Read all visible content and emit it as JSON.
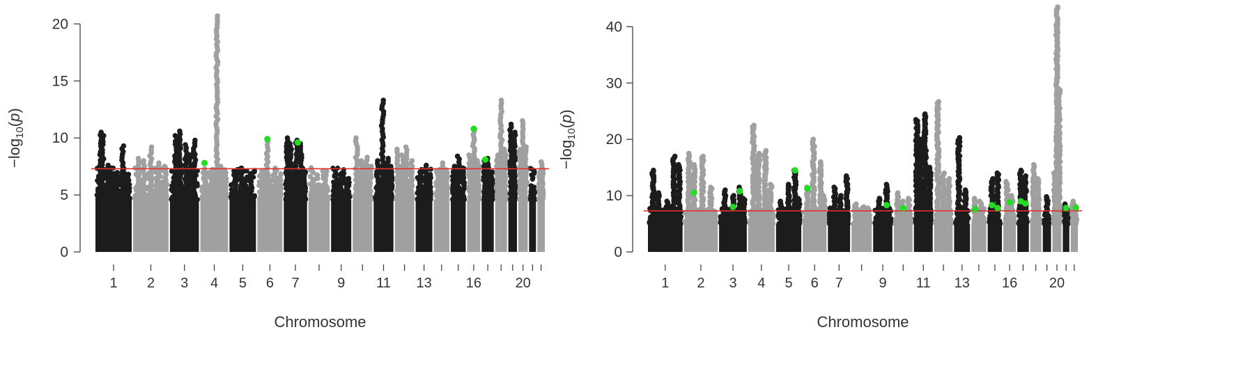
{
  "chart_data": [
    {
      "type": "scatter",
      "title": "",
      "xlabel": "Chromosome",
      "ylabel": {
        "prefix": "−log",
        "sub": "10",
        "open": "(",
        "var": "p",
        "close": ")"
      },
      "ylim": [
        0,
        21
      ],
      "y_ticks": [
        0,
        5,
        10,
        15,
        20
      ],
      "y_tick_labels": [
        "0",
        "5",
        "10",
        "15",
        "20"
      ],
      "threshold": 7.3,
      "threshold_color": "#e03030",
      "colors": {
        "dark": "#1c1c1c",
        "light": "#a0a0a0",
        "highlight": "#22dd22"
      },
      "chromosomes": [
        {
          "chr": "1",
          "label": "1",
          "peaks": [
            [
              0.15,
              10.5
            ],
            [
              0.2,
              10.2
            ],
            [
              0.35,
              7.6
            ],
            [
              0.45,
              6.6
            ],
            [
              0.6,
              6.7
            ],
            [
              0.75,
              9.3
            ],
            [
              0.9,
              6.8
            ]
          ]
        },
        {
          "chr": "2",
          "label": "2",
          "peaks": [
            [
              0.15,
              8.2
            ],
            [
              0.3,
              8.0
            ],
            [
              0.5,
              9.2
            ],
            [
              0.7,
              7.8
            ],
            [
              0.9,
              7.5
            ]
          ]
        },
        {
          "chr": "3",
          "label": "3",
          "peaks": [
            [
              0.2,
              10.2
            ],
            [
              0.35,
              10.6
            ],
            [
              0.55,
              9.4
            ],
            [
              0.7,
              8.5
            ],
            [
              0.85,
              9.8
            ]
          ]
        },
        {
          "chr": "4",
          "label": "4",
          "peaks": [
            [
              0.15,
              7.2
            ],
            [
              0.4,
              7.0
            ],
            [
              0.6,
              20.7
            ],
            [
              0.75,
              7.5
            ],
            [
              0.9,
              7.2
            ]
          ]
        },
        {
          "chr": "5",
          "label": "5",
          "peaks": [
            [
              0.2,
              7.0
            ],
            [
              0.45,
              7.3
            ],
            [
              0.6,
              6.3
            ],
            [
              0.8,
              6.9
            ]
          ]
        },
        {
          "chr": "6",
          "label": "6",
          "peaks": [
            [
              0.2,
              6.5
            ],
            [
              0.4,
              9.9
            ],
            [
              0.7,
              7.2
            ],
            [
              0.9,
              6.8
            ]
          ]
        },
        {
          "chr": "7",
          "label": "7",
          "peaks": [
            [
              0.15,
              10.0
            ],
            [
              0.3,
              9.5
            ],
            [
              0.55,
              9.8
            ],
            [
              0.75,
              9.5
            ],
            [
              0.9,
              7.0
            ]
          ]
        },
        {
          "chr": "8",
          "label": "",
          "peaks": [
            [
              0.2,
              6.2
            ],
            [
              0.5,
              5.6
            ],
            [
              0.8,
              5.8
            ]
          ]
        },
        {
          "chr": "9",
          "label": "9",
          "peaks": [
            [
              0.2,
              6.0
            ],
            [
              0.5,
              6.9
            ],
            [
              0.8,
              6.4
            ]
          ]
        },
        {
          "chr": "10",
          "label": "",
          "peaks": [
            [
              0.2,
              10.0
            ],
            [
              0.45,
              8.0
            ],
            [
              0.7,
              8.3
            ],
            [
              0.9,
              7.5
            ]
          ]
        },
        {
          "chr": "11",
          "label": "11",
          "peaks": [
            [
              0.2,
              8.0
            ],
            [
              0.45,
              13.3
            ],
            [
              0.7,
              8.2
            ],
            [
              0.9,
              7.5
            ]
          ]
        },
        {
          "chr": "12",
          "label": "",
          "peaks": [
            [
              0.15,
              9.0
            ],
            [
              0.4,
              8.5
            ],
            [
              0.6,
              9.2
            ],
            [
              0.85,
              8.0
            ]
          ]
        },
        {
          "chr": "13",
          "label": "13",
          "peaks": [
            [
              0.25,
              7.0
            ],
            [
              0.6,
              7.6
            ],
            [
              0.85,
              6.5
            ]
          ]
        },
        {
          "chr": "14",
          "label": "",
          "peaks": [
            [
              0.25,
              7.0
            ],
            [
              0.55,
              7.8
            ],
            [
              0.85,
              7.2
            ]
          ]
        },
        {
          "chr": "15",
          "label": "",
          "peaks": [
            [
              0.2,
              7.5
            ],
            [
              0.5,
              8.4
            ],
            [
              0.85,
              7.0
            ]
          ]
        },
        {
          "chr": "16",
          "label": "16",
          "peaks": [
            [
              0.2,
              8.5
            ],
            [
              0.5,
              10.8
            ],
            [
              0.85,
              8.0
            ]
          ]
        },
        {
          "chr": "17",
          "label": "",
          "peaks": [
            [
              0.2,
              8.0
            ],
            [
              0.5,
              8.2
            ],
            [
              0.85,
              7.0
            ]
          ]
        },
        {
          "chr": "18",
          "label": "",
          "peaks": [
            [
              0.2,
              8.5
            ],
            [
              0.5,
              13.3
            ],
            [
              0.85,
              9.0
            ]
          ]
        },
        {
          "chr": "19",
          "label": "",
          "peaks": [
            [
              0.3,
              11.2
            ],
            [
              0.7,
              10.5
            ]
          ]
        },
        {
          "chr": "20",
          "label": "20",
          "peaks": [
            [
              0.2,
              9.0
            ],
            [
              0.5,
              11.5
            ],
            [
              0.8,
              9.2
            ]
          ]
        },
        {
          "chr": "21",
          "label": "",
          "peaks": [
            [
              0.3,
              5.3
            ],
            [
              0.7,
              5.2
            ]
          ]
        },
        {
          "chr": "22",
          "label": "",
          "peaks": [
            [
              0.3,
              7.0
            ],
            [
              0.65,
              7.9
            ]
          ]
        }
      ],
      "highlights": [
        {
          "chr": "4",
          "pos": 0.15,
          "y": 7.8
        },
        {
          "chr": "6",
          "pos": 0.4,
          "y": 9.9
        },
        {
          "chr": "7",
          "pos": 0.6,
          "y": 9.6
        },
        {
          "chr": "16",
          "pos": 0.5,
          "y": 10.8
        },
        {
          "chr": "17",
          "pos": 0.3,
          "y": 8.1
        }
      ]
    },
    {
      "type": "scatter",
      "title": "",
      "xlabel": "Chromosome",
      "ylabel": {
        "prefix": "−log",
        "sub": "10",
        "open": "(",
        "var": "p",
        "close": ")"
      },
      "ylim": [
        0,
        44
      ],
      "y_ticks": [
        0,
        10,
        20,
        30,
        40
      ],
      "y_tick_labels": [
        "0",
        "10",
        "20",
        "30",
        "40"
      ],
      "threshold": 7.3,
      "threshold_color": "#e03030",
      "colors": {
        "dark": "#1c1c1c",
        "light": "#a0a0a0",
        "highlight": "#22dd22"
      },
      "chromosomes": [
        {
          "chr": "1",
          "label": "1",
          "peaks": [
            [
              0.15,
              14.5
            ],
            [
              0.3,
              10.5
            ],
            [
              0.55,
              9.0
            ],
            [
              0.75,
              17.0
            ],
            [
              0.9,
              15.5
            ]
          ]
        },
        {
          "chr": "2",
          "label": "2",
          "peaks": [
            [
              0.15,
              17.5
            ],
            [
              0.3,
              15.5
            ],
            [
              0.55,
              17.0
            ],
            [
              0.8,
              11.5
            ]
          ]
        },
        {
          "chr": "3",
          "label": "3",
          "peaks": [
            [
              0.2,
              11.0
            ],
            [
              0.5,
              10.0
            ],
            [
              0.75,
              11.5
            ],
            [
              0.9,
              9.5
            ]
          ]
        },
        {
          "chr": "4",
          "label": "4",
          "peaks": [
            [
              0.2,
              22.5
            ],
            [
              0.4,
              17.5
            ],
            [
              0.65,
              18.0
            ],
            [
              0.85,
              12.0
            ]
          ]
        },
        {
          "chr": "5",
          "label": "5",
          "peaks": [
            [
              0.2,
              9.0
            ],
            [
              0.5,
              12.0
            ],
            [
              0.75,
              14.5
            ],
            [
              0.9,
              9.5
            ]
          ]
        },
        {
          "chr": "6",
          "label": "6",
          "peaks": [
            [
              0.2,
              11.5
            ],
            [
              0.45,
              20.0
            ],
            [
              0.75,
              16.0
            ],
            [
              0.9,
              10.0
            ]
          ]
        },
        {
          "chr": "7",
          "label": "7",
          "peaks": [
            [
              0.3,
              11.5
            ],
            [
              0.55,
              10.0
            ],
            [
              0.85,
              13.5
            ]
          ]
        },
        {
          "chr": "8",
          "label": "",
          "peaks": [
            [
              0.2,
              8.5
            ],
            [
              0.6,
              8.0
            ],
            [
              0.85,
              7.8
            ]
          ]
        },
        {
          "chr": "9",
          "label": "9",
          "peaks": [
            [
              0.3,
              9.5
            ],
            [
              0.7,
              12.0
            ]
          ]
        },
        {
          "chr": "10",
          "label": "",
          "peaks": [
            [
              0.2,
              10.5
            ],
            [
              0.5,
              9.0
            ],
            [
              0.8,
              9.5
            ]
          ]
        },
        {
          "chr": "11",
          "label": "11",
          "peaks": [
            [
              0.15,
              23.5
            ],
            [
              0.35,
              20.0
            ],
            [
              0.6,
              24.5
            ],
            [
              0.85,
              15.0
            ]
          ]
        },
        {
          "chr": "12",
          "label": "",
          "peaks": [
            [
              0.2,
              26.7
            ],
            [
              0.5,
              14.0
            ],
            [
              0.8,
              13.0
            ]
          ]
        },
        {
          "chr": "13",
          "label": "13",
          "peaks": [
            [
              0.3,
              20.3
            ],
            [
              0.7,
              11.0
            ]
          ]
        },
        {
          "chr": "14",
          "label": "",
          "peaks": [
            [
              0.25,
              9.5
            ],
            [
              0.6,
              9.0
            ]
          ]
        },
        {
          "chr": "15",
          "label": "",
          "peaks": [
            [
              0.3,
              13.0
            ],
            [
              0.7,
              14.0
            ]
          ]
        },
        {
          "chr": "16",
          "label": "16",
          "peaks": [
            [
              0.3,
              12.5
            ],
            [
              0.7,
              10.0
            ]
          ]
        },
        {
          "chr": "17",
          "label": "",
          "peaks": [
            [
              0.3,
              14.5
            ],
            [
              0.7,
              13.5
            ]
          ]
        },
        {
          "chr": "18",
          "label": "",
          "peaks": [
            [
              0.3,
              15.5
            ],
            [
              0.7,
              13.0
            ]
          ]
        },
        {
          "chr": "19",
          "label": "",
          "peaks": [
            [
              0.5,
              9.8
            ]
          ]
        },
        {
          "chr": "20",
          "label": "20",
          "peaks": [
            [
              0.25,
              14.0
            ],
            [
              0.5,
              43.5
            ],
            [
              0.75,
              29.0
            ]
          ]
        },
        {
          "chr": "21",
          "label": "",
          "peaks": [
            [
              0.4,
              8.5
            ],
            [
              0.75,
              7.5
            ]
          ]
        },
        {
          "chr": "22",
          "label": "",
          "peaks": [
            [
              0.3,
              9.0
            ],
            [
              0.7,
              8.2
            ]
          ]
        }
      ],
      "highlights": [
        {
          "chr": "2",
          "pos": 0.3,
          "y": 10.5
        },
        {
          "chr": "3",
          "pos": 0.5,
          "y": 8.0
        },
        {
          "chr": "3",
          "pos": 0.75,
          "y": 10.8
        },
        {
          "chr": "5",
          "pos": 0.75,
          "y": 14.5
        },
        {
          "chr": "6",
          "pos": 0.2,
          "y": 11.3
        },
        {
          "chr": "9",
          "pos": 0.7,
          "y": 8.3
        },
        {
          "chr": "10",
          "pos": 0.5,
          "y": 7.8
        },
        {
          "chr": "14",
          "pos": 0.25,
          "y": 7.6
        },
        {
          "chr": "15",
          "pos": 0.3,
          "y": 8.3
        },
        {
          "chr": "15",
          "pos": 0.7,
          "y": 7.8
        },
        {
          "chr": "16",
          "pos": 0.5,
          "y": 8.8
        },
        {
          "chr": "17",
          "pos": 0.3,
          "y": 9.0
        },
        {
          "chr": "17",
          "pos": 0.7,
          "y": 8.6
        },
        {
          "chr": "21",
          "pos": 0.5,
          "y": 7.8
        },
        {
          "chr": "22",
          "pos": 0.7,
          "y": 7.9
        }
      ]
    }
  ]
}
